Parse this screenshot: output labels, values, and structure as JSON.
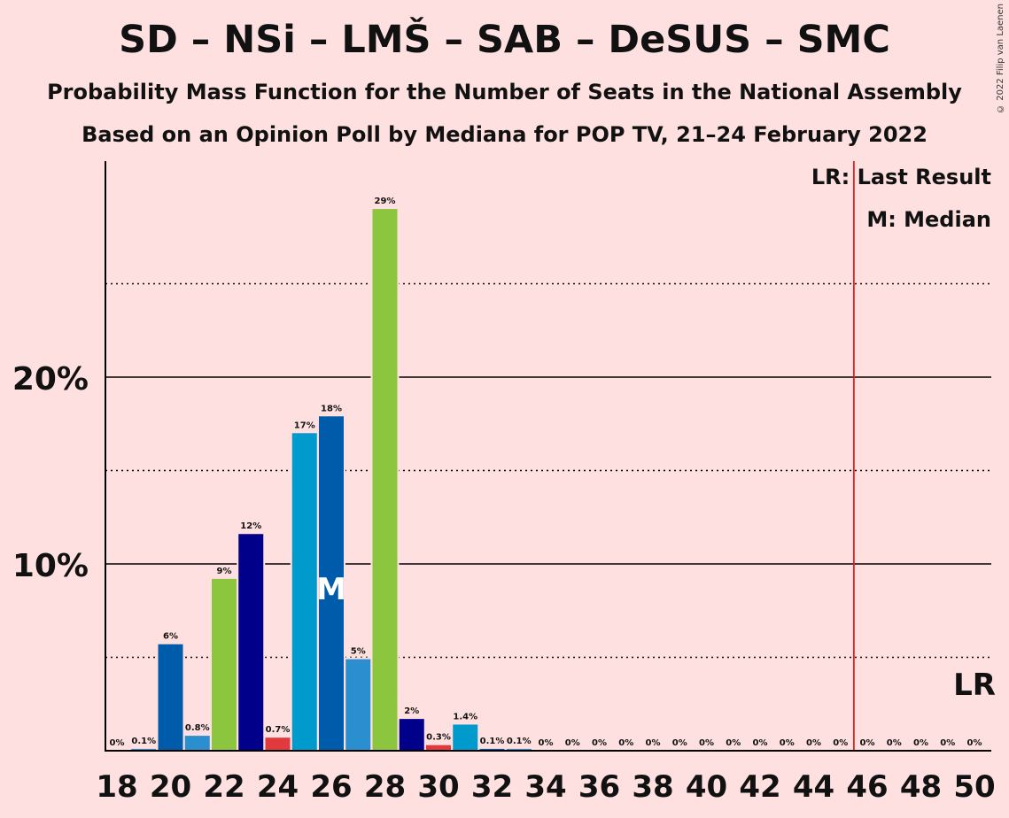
{
  "title": "SD – NSi – LMŠ – SAB – DeSUS – SMC",
  "subtitle": "Probability Mass Function for the Number of Seats in the National Assembly",
  "subtitle2": "Based on an Opinion Poll by Mediana for POP TV, 21–24 February 2022",
  "copyright": "© 2022 Filip van Laenen",
  "legend": {
    "last_result": "LR: Last Result",
    "median": "M: Median"
  },
  "markers": {
    "median_label": "M",
    "last_result_label": "LR"
  },
  "colors": {
    "background": "#FFE0E0",
    "last_result_line": "#E0201A",
    "axis": "#000000"
  },
  "chart_data": {
    "type": "bar",
    "x_label": "",
    "y_label": "",
    "ylim": [
      0,
      31.5
    ],
    "y_ticks": [
      {
        "value": 10,
        "label": "10%"
      },
      {
        "value": 20,
        "label": "20%"
      }
    ],
    "y_dotted_lines": [
      5,
      15,
      25
    ],
    "x_ticks": [
      18,
      20,
      22,
      24,
      26,
      28,
      30,
      32,
      34,
      36,
      38,
      40,
      42,
      44,
      46,
      48,
      50
    ],
    "median_seat": 26,
    "last_result_seat": 45.5,
    "bars": [
      {
        "seat": 18,
        "value": 0,
        "label": "0%",
        "color": "#005BAA"
      },
      {
        "seat": 19,
        "value": 0.1,
        "label": "0.1%",
        "color": "#2B8FCF"
      },
      {
        "seat": 20,
        "value": 5.7,
        "label": "6%",
        "color": "#005BAA"
      },
      {
        "seat": 21,
        "value": 0.8,
        "label": "0.8%",
        "color": "#2B8FCF"
      },
      {
        "seat": 22,
        "value": 9.2,
        "label": "9%",
        "color": "#8CC63E"
      },
      {
        "seat": 23,
        "value": 11.6,
        "label": "12%",
        "color": "#00008B"
      },
      {
        "seat": 24,
        "value": 0.7,
        "label": "0.7%",
        "color": "#E03A3E"
      },
      {
        "seat": 25,
        "value": 17.0,
        "label": "17%",
        "color": "#009ACD"
      },
      {
        "seat": 26,
        "value": 17.9,
        "label": "18%",
        "color": "#005BAA"
      },
      {
        "seat": 27,
        "value": 4.9,
        "label": "5%",
        "color": "#2B8FCF"
      },
      {
        "seat": 28,
        "value": 29.0,
        "label": "29%",
        "color": "#8CC63E"
      },
      {
        "seat": 29,
        "value": 1.7,
        "label": "2%",
        "color": "#00008B"
      },
      {
        "seat": 30,
        "value": 0.3,
        "label": "0.3%",
        "color": "#E03A3E"
      },
      {
        "seat": 31,
        "value": 1.4,
        "label": "1.4%",
        "color": "#009ACD"
      },
      {
        "seat": 32,
        "value": 0.1,
        "label": "0.1%",
        "color": "#005BAA"
      },
      {
        "seat": 33,
        "value": 0.1,
        "label": "0.1%",
        "color": "#2B8FCF"
      },
      {
        "seat": 34,
        "value": 0,
        "label": "0%",
        "color": "#8CC63E"
      },
      {
        "seat": 35,
        "value": 0,
        "label": "0%",
        "color": "#00008B"
      },
      {
        "seat": 36,
        "value": 0,
        "label": "0%",
        "color": "#E03A3E"
      },
      {
        "seat": 37,
        "value": 0,
        "label": "0%",
        "color": "#009ACD"
      },
      {
        "seat": 38,
        "value": 0,
        "label": "0%",
        "color": "#005BAA"
      },
      {
        "seat": 39,
        "value": 0,
        "label": "0%",
        "color": "#2B8FCF"
      },
      {
        "seat": 40,
        "value": 0,
        "label": "0%",
        "color": "#8CC63E"
      },
      {
        "seat": 41,
        "value": 0,
        "label": "0%",
        "color": "#00008B"
      },
      {
        "seat": 42,
        "value": 0,
        "label": "0%",
        "color": "#E03A3E"
      },
      {
        "seat": 43,
        "value": 0,
        "label": "0%",
        "color": "#009ACD"
      },
      {
        "seat": 44,
        "value": 0,
        "label": "0%",
        "color": "#005BAA"
      },
      {
        "seat": 45,
        "value": 0,
        "label": "0%",
        "color": "#2B8FCF"
      },
      {
        "seat": 46,
        "value": 0,
        "label": "0%",
        "color": "#8CC63E"
      },
      {
        "seat": 47,
        "value": 0,
        "label": "0%",
        "color": "#00008B"
      },
      {
        "seat": 48,
        "value": 0,
        "label": "0%",
        "color": "#E03A3E"
      },
      {
        "seat": 49,
        "value": 0,
        "label": "0%",
        "color": "#009ACD"
      },
      {
        "seat": 50,
        "value": 0,
        "label": "0%",
        "color": "#005BAA"
      }
    ]
  }
}
